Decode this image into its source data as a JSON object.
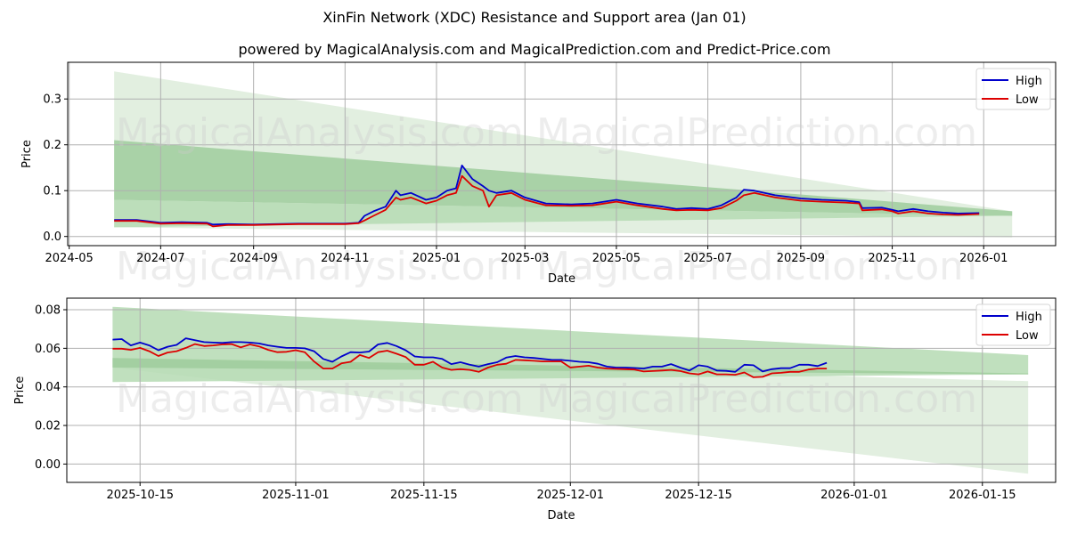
{
  "header": {
    "title": "XinFin Network (XDC) Resistance and Support area (Jan 01)",
    "subtitle": "powered by MagicalAnalysis.com and MagicalPrediction.com and Predict-Price.com"
  },
  "watermarks": [
    "MagicalAnalysis.com",
    "MagicalPrediction.com"
  ],
  "colors": {
    "high": "#0000cc",
    "low": "#dd0000",
    "band_light": "#e2efe0",
    "band_mid": "#b5dab3",
    "band_dark": "#9fcc9c",
    "grid": "#b0b0b0"
  },
  "chart_data": [
    {
      "type": "line",
      "title": "",
      "xlabel": "Date",
      "ylabel": "Price",
      "ylim": [
        -0.02,
        0.38
      ],
      "xlim": [
        "2024-04-30",
        "2026-02-18"
      ],
      "grid": true,
      "legend_position": "upper right",
      "legend": [
        "High",
        "Low"
      ],
      "x_ticks": [
        "2024-05",
        "2024-07",
        "2024-09",
        "2024-11",
        "2025-01",
        "2025-03",
        "2025-05",
        "2025-07",
        "2025-09",
        "2025-11",
        "2026-01"
      ],
      "y_ticks": [
        "0.0",
        "0.1",
        "0.2",
        "0.3"
      ],
      "bands": [
        {
          "name": "outer-resistance-support",
          "x": [
            "2024-05-31",
            "2026-01-20"
          ],
          "upper": [
            0.36,
            0.055
          ],
          "lower": [
            0.02,
            -0.002
          ],
          "shade": "light"
        },
        {
          "name": "resistance-zone",
          "x": [
            "2024-05-31",
            "2026-01-20"
          ],
          "upper": [
            0.21,
            0.055
          ],
          "lower": [
            0.08,
            0.045
          ],
          "shade": "dark"
        },
        {
          "name": "support-zone",
          "x": [
            "2024-05-31",
            "2026-01-20"
          ],
          "upper": [
            0.08,
            0.045
          ],
          "lower": [
            0.02,
            0.045
          ],
          "shade": "mid"
        }
      ],
      "x": [
        "2024-05-31",
        "2024-06-15",
        "2024-07-01",
        "2024-07-15",
        "2024-08-01",
        "2024-08-05",
        "2024-08-15",
        "2024-09-01",
        "2024-09-15",
        "2024-10-01",
        "2024-10-15",
        "2024-11-01",
        "2024-11-10",
        "2024-11-14",
        "2024-11-20",
        "2024-11-28",
        "2024-12-05",
        "2024-12-08",
        "2024-12-15",
        "2024-12-25",
        "2025-01-01",
        "2025-01-08",
        "2025-01-14",
        "2025-01-18",
        "2025-01-25",
        "2025-02-01",
        "2025-02-05",
        "2025-02-10",
        "2025-02-20",
        "2025-03-01",
        "2025-03-15",
        "2025-04-01",
        "2025-04-15",
        "2025-05-01",
        "2025-05-15",
        "2025-06-01",
        "2025-06-10",
        "2025-06-20",
        "2025-07-01",
        "2025-07-10",
        "2025-07-20",
        "2025-07-25",
        "2025-08-01",
        "2025-08-15",
        "2025-09-01",
        "2025-09-15",
        "2025-10-01",
        "2025-10-10",
        "2025-10-12",
        "2025-10-25",
        "2025-11-01",
        "2025-11-05",
        "2025-11-15",
        "2025-11-25",
        "2025-12-05",
        "2025-12-15",
        "2025-12-29"
      ],
      "series": [
        {
          "name": "High",
          "values": [
            0.036,
            0.036,
            0.03,
            0.031,
            0.03,
            0.026,
            0.027,
            0.026,
            0.027,
            0.028,
            0.028,
            0.028,
            0.03,
            0.045,
            0.055,
            0.065,
            0.1,
            0.09,
            0.095,
            0.08,
            0.085,
            0.1,
            0.105,
            0.155,
            0.125,
            0.11,
            0.1,
            0.095,
            0.1,
            0.085,
            0.072,
            0.07,
            0.072,
            0.08,
            0.072,
            0.065,
            0.06,
            0.062,
            0.06,
            0.068,
            0.085,
            0.102,
            0.1,
            0.09,
            0.083,
            0.08,
            0.078,
            0.075,
            0.062,
            0.063,
            0.058,
            0.055,
            0.06,
            0.055,
            0.052,
            0.05,
            0.051
          ]
        },
        {
          "name": "Low",
          "values": [
            0.034,
            0.034,
            0.028,
            0.029,
            0.028,
            0.022,
            0.025,
            0.025,
            0.026,
            0.027,
            0.027,
            0.027,
            0.029,
            0.035,
            0.045,
            0.058,
            0.085,
            0.08,
            0.085,
            0.072,
            0.078,
            0.09,
            0.095,
            0.132,
            0.11,
            0.1,
            0.065,
            0.09,
            0.095,
            0.08,
            0.068,
            0.067,
            0.068,
            0.076,
            0.068,
            0.06,
            0.057,
            0.058,
            0.057,
            0.062,
            0.078,
            0.09,
            0.095,
            0.085,
            0.078,
            0.076,
            0.074,
            0.072,
            0.057,
            0.059,
            0.055,
            0.05,
            0.055,
            0.05,
            0.048,
            0.047,
            0.049
          ]
        }
      ]
    },
    {
      "type": "line",
      "title": "",
      "xlabel": "Date",
      "ylabel": "Price",
      "ylim": [
        -0.0095,
        0.086
      ],
      "xlim": [
        "2025-10-07",
        "2026-01-23"
      ],
      "grid": true,
      "legend_position": "upper right",
      "legend": [
        "High",
        "Low"
      ],
      "x_ticks": [
        "2025-10-15",
        "2025-11-01",
        "2025-11-15",
        "2025-12-01",
        "2025-12-15",
        "2026-01-01",
        "2026-01-15"
      ],
      "y_ticks": [
        "0.00",
        "0.02",
        "0.04",
        "0.06",
        "0.08"
      ],
      "bands": [
        {
          "name": "outer-resistance-support",
          "x": [
            "2025-10-12",
            "2026-01-20"
          ],
          "upper": [
            0.055,
            0.043
          ],
          "lower": [
            0.05,
            -0.005
          ],
          "shade": "light"
        },
        {
          "name": "resistance-zone",
          "x": [
            "2025-10-12",
            "2026-01-20"
          ],
          "upper": [
            0.0815,
            0.0565
          ],
          "lower": [
            0.0425,
            0.0465
          ],
          "shade": "mid"
        },
        {
          "name": "support-zone",
          "x": [
            "2025-10-12",
            "2026-01-20"
          ],
          "upper": [
            0.055,
            0.047
          ],
          "lower": [
            0.05,
            0.0465
          ],
          "shade": "dark"
        }
      ],
      "x": [
        "2025-10-12",
        "2025-10-13",
        "2025-10-14",
        "2025-10-15",
        "2025-10-16",
        "2025-10-17",
        "2025-10-18",
        "2025-10-19",
        "2025-10-20",
        "2025-10-21",
        "2025-10-22",
        "2025-10-23",
        "2025-10-24",
        "2025-10-25",
        "2025-10-26",
        "2025-10-27",
        "2025-10-28",
        "2025-10-29",
        "2025-10-30",
        "2025-10-31",
        "2025-11-01",
        "2025-11-02",
        "2025-11-03",
        "2025-11-04",
        "2025-11-05",
        "2025-11-06",
        "2025-11-07",
        "2025-11-08",
        "2025-11-09",
        "2025-11-10",
        "2025-11-11",
        "2025-11-12",
        "2025-11-13",
        "2025-11-14",
        "2025-11-15",
        "2025-11-16",
        "2025-11-17",
        "2025-11-18",
        "2025-11-19",
        "2025-11-20",
        "2025-11-21",
        "2025-11-22",
        "2025-11-23",
        "2025-11-24",
        "2025-11-25",
        "2025-11-26",
        "2025-11-27",
        "2025-11-28",
        "2025-11-29",
        "2025-11-30",
        "2025-12-01",
        "2025-12-02",
        "2025-12-03",
        "2025-12-04",
        "2025-12-05",
        "2025-12-06",
        "2025-12-07",
        "2025-12-08",
        "2025-12-09",
        "2025-12-10",
        "2025-12-11",
        "2025-12-12",
        "2025-12-13",
        "2025-12-14",
        "2025-12-15",
        "2025-12-16",
        "2025-12-17",
        "2025-12-18",
        "2025-12-19",
        "2025-12-20",
        "2025-12-21",
        "2025-12-22",
        "2025-12-23",
        "2025-12-24",
        "2025-12-25",
        "2025-12-26",
        "2025-12-27",
        "2025-12-28",
        "2025-12-29"
      ],
      "series": [
        {
          "name": "High",
          "values": [
            0.0645,
            0.0648,
            0.0615,
            0.063,
            0.0615,
            0.059,
            0.0608,
            0.0618,
            0.0652,
            0.0642,
            0.0632,
            0.063,
            0.0628,
            0.0632,
            0.0632,
            0.063,
            0.0625,
            0.0615,
            0.0608,
            0.0602,
            0.0602,
            0.06,
            0.0585,
            0.0545,
            0.053,
            0.0558,
            0.058,
            0.0578,
            0.0583,
            0.062,
            0.0628,
            0.0612,
            0.059,
            0.0558,
            0.0553,
            0.0553,
            0.0545,
            0.0518,
            0.0528,
            0.0515,
            0.0505,
            0.0518,
            0.0528,
            0.0552,
            0.056,
            0.0553,
            0.055,
            0.0545,
            0.054,
            0.054,
            0.0535,
            0.053,
            0.0528,
            0.052,
            0.0505,
            0.05,
            0.05,
            0.0498,
            0.0495,
            0.0505,
            0.0505,
            0.0518,
            0.05,
            0.0485,
            0.0512,
            0.0505,
            0.0485,
            0.0483,
            0.0478,
            0.0515,
            0.0512,
            0.048,
            0.0492,
            0.0497,
            0.0497,
            0.0515,
            0.0515,
            0.0508,
            0.0525
          ]
        },
        {
          "name": "Low",
          "values": [
            0.0598,
            0.0598,
            0.0592,
            0.0602,
            0.0585,
            0.056,
            0.0578,
            0.0585,
            0.0602,
            0.0622,
            0.0612,
            0.0615,
            0.062,
            0.0622,
            0.0605,
            0.062,
            0.061,
            0.0592,
            0.058,
            0.0582,
            0.059,
            0.058,
            0.0532,
            0.0495,
            0.0495,
            0.0522,
            0.053,
            0.0565,
            0.055,
            0.058,
            0.0588,
            0.0572,
            0.0555,
            0.0515,
            0.0515,
            0.053,
            0.05,
            0.0488,
            0.0492,
            0.0488,
            0.0478,
            0.05,
            0.0515,
            0.052,
            0.054,
            0.0538,
            0.0535,
            0.0532,
            0.0532,
            0.0532,
            0.05,
            0.0505,
            0.051,
            0.05,
            0.0495,
            0.0493,
            0.0492,
            0.049,
            0.048,
            0.0482,
            0.0485,
            0.0488,
            0.0482,
            0.047,
            0.0465,
            0.048,
            0.0465,
            0.0465,
            0.0463,
            0.0475,
            0.045,
            0.0452,
            0.047,
            0.0473,
            0.0478,
            0.0478,
            0.049,
            0.0495,
            0.0495
          ]
        }
      ]
    }
  ]
}
